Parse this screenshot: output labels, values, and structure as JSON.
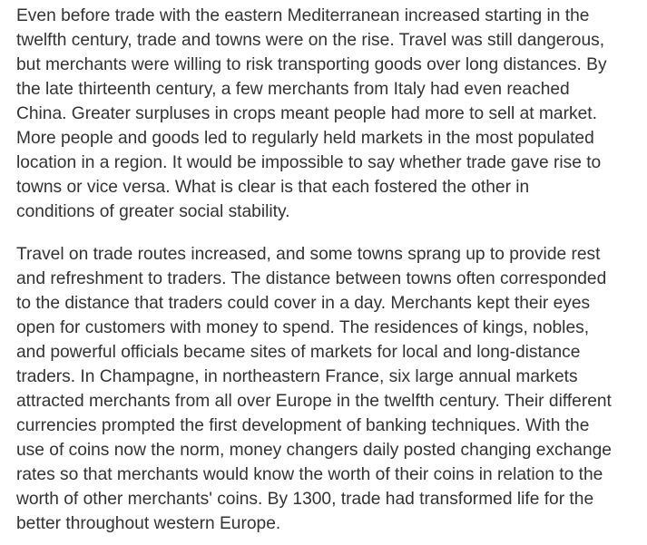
{
  "article": {
    "paragraphs": [
      {
        "lines": [
          "Even before trade with the eastern Mediterranean increased starting in the",
          "twelfth century, trade and towns were on the rise. Travel was still dangerous,",
          "but merchants were willing to risk transporting goods over long distances. By",
          "the late thirteenth century, a few merchants from Italy had even reached",
          "China. Greater surpluses in crops meant people had more to sell at market.",
          "More people and goods led to regularly held markets in the most populated",
          "location in a region. It would be impossible to say whether trade gave rise to",
          "towns or vice versa. What is clear is that each fostered the other in",
          "conditions of greater social stability."
        ]
      },
      {
        "lines": [
          "Travel on trade routes increased, and some towns sprang up to provide rest",
          "and refreshment to traders. The distance between towns often corresponded",
          "to the distance that traders could cover in a day. Merchants kept their eyes",
          "open for customers with money to spend. The residences of kings, nobles,",
          "and powerful officials became sites of markets for local and long-distance",
          "traders. In Champagne, in northeastern France, six large annual markets",
          "attracted merchants from all over Europe in the twelfth century. Their different",
          "currencies prompted the first development of banking techniques. With the",
          "use of coins now the norm, money changers daily posted changing exchange",
          "rates so that merchants would know the worth of their coins in relation to the",
          "worth of other merchants' coins. By 1300, trade had transformed life for the",
          "better throughout western Europe."
        ]
      }
    ]
  }
}
